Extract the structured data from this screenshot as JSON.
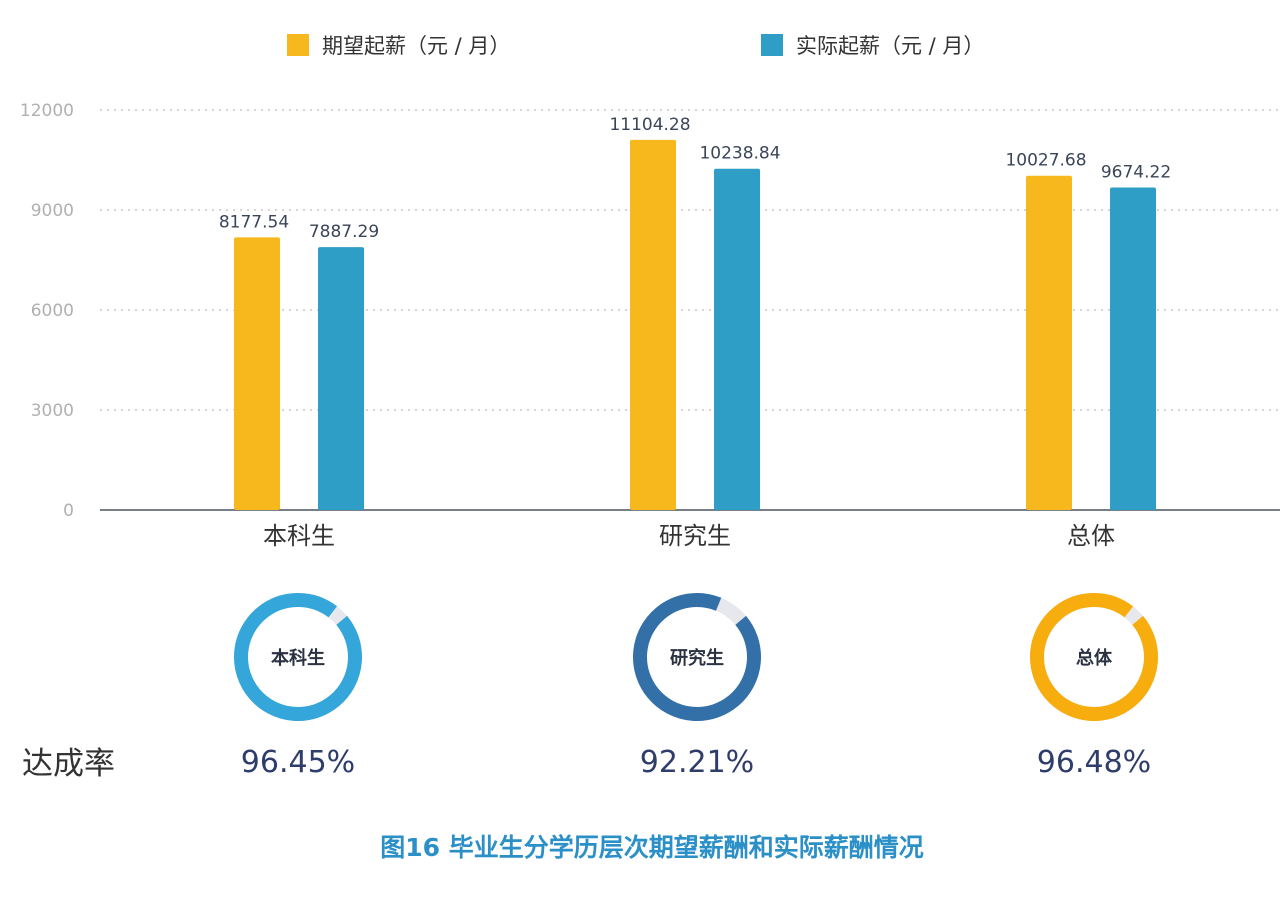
{
  "chart_data": {
    "type": "bar",
    "categories": [
      "本科生",
      "研究生",
      "总体"
    ],
    "series": [
      {
        "name": "期望起薪（元 / 月）",
        "values": [
          8177.54,
          11104.28,
          10027.68
        ],
        "color": "#f7b81d"
      },
      {
        "name": "实际起薪（元 / 月）",
        "values": [
          7887.29,
          10238.84,
          9674.22
        ],
        "color": "#2e9ec6"
      }
    ],
    "value_labels": [
      [
        "8177.54",
        "11104.28",
        "10027.68"
      ],
      [
        "7887.29",
        "10238.84",
        "9674.22"
      ]
    ],
    "yticks": [
      "0",
      "3000",
      "6000",
      "9000",
      "12000"
    ],
    "ylim": [
      0,
      12000
    ],
    "grid": "dotted horizontal",
    "legend_position": "top",
    "title": "图16  毕业生分学历层次期望薪酬和实际薪酬情况"
  },
  "achievement": {
    "title": "达成率",
    "items": [
      {
        "label": "本科生",
        "rate_text": "96.45%",
        "rate": 96.45,
        "color": "#35a6d9"
      },
      {
        "label": "研究生",
        "rate_text": "92.21%",
        "rate": 92.21,
        "color": "#3470a8"
      },
      {
        "label": "总体",
        "rate_text": "96.48%",
        "rate": 96.48,
        "color": "#f7ad0d"
      }
    ],
    "track_color": "#e6e8ee"
  }
}
